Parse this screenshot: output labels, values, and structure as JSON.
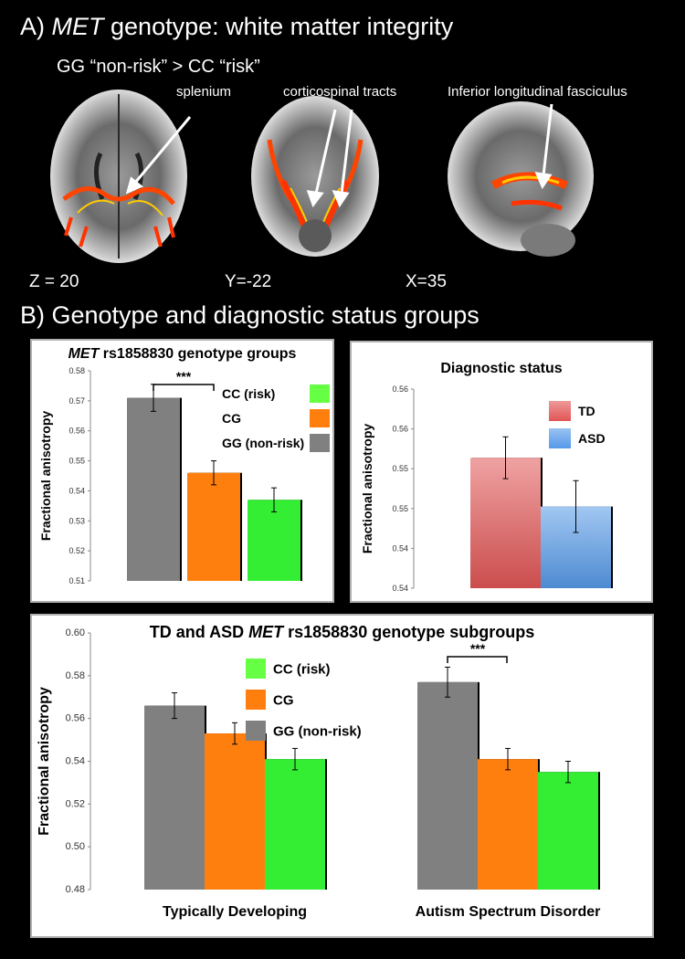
{
  "part_a": {
    "label": "A)",
    "title_italic": "MET",
    "title_rest": " genotype: white matter integrity",
    "subtitle": "GG “non-risk” > CC “risk”",
    "annotations": [
      "splenium",
      "corticospinal tracts",
      "Inferior longitudinal fasciculus"
    ],
    "coords": [
      "Z = 20",
      "Y=-22",
      "X=35"
    ]
  },
  "part_b": {
    "title": "B) Genotype and diagnostic status groups"
  },
  "chart_data": [
    {
      "type": "bar",
      "title_italic": "MET",
      "title_rest": " rs1858830 genotype groups",
      "ylabel": "Fractional anisotropy",
      "ylim": [
        0.51,
        0.58
      ],
      "yticks": [
        "0.51",
        "0.52",
        "0.53",
        "0.54",
        "0.55",
        "0.56",
        "0.57",
        "0.58"
      ],
      "categories": [
        "GG (non-risk)",
        "CG",
        "CC (risk)"
      ],
      "values": [
        0.571,
        0.546,
        0.537
      ],
      "errors": [
        0.0045,
        0.004,
        0.004
      ],
      "colors": [
        "#808080",
        "#ff7f0e",
        "#33ee33"
      ],
      "legend": [
        "CC (risk)",
        "CG",
        "GG (non-risk)"
      ],
      "legend_colors": [
        "#66ff44",
        "#ff7f0e",
        "#808080"
      ],
      "significance": "***"
    },
    {
      "type": "bar",
      "title": "Diagnostic status",
      "ylabel": "Fractional anisotropy",
      "ylim": [
        0.54,
        0.56
      ],
      "yticks": [
        "0.54",
        "0.54",
        "0.55",
        "0.55",
        "0.56",
        "0.56"
      ],
      "categories": [
        "TD",
        "ASD"
      ],
      "values": [
        0.5531,
        0.5482
      ],
      "errors": [
        0.0021,
        0.0026
      ],
      "colors": [
        "#e25555",
        "#5599e8"
      ],
      "legend": [
        "TD",
        "ASD"
      ]
    },
    {
      "type": "bar",
      "title_pre": "TD and ASD ",
      "title_italic": "MET",
      "title_rest": " rs1858830 genotype subgroups",
      "ylabel": "Fractional anisotropy",
      "ylim": [
        0.48,
        0.6
      ],
      "yticks": [
        "0.48",
        "0.50",
        "0.52",
        "0.54",
        "0.56",
        "0.58",
        "0.60"
      ],
      "categories": [
        "Typically Developing",
        "Autism Spectrum Disorder"
      ],
      "series": [
        {
          "name": "GG (non-risk)",
          "values": [
            0.566,
            0.577
          ],
          "errors": [
            0.006,
            0.007
          ]
        },
        {
          "name": "CG",
          "values": [
            0.553,
            0.541
          ],
          "errors": [
            0.005,
            0.005
          ]
        },
        {
          "name": "CC (risk)",
          "values": [
            0.541,
            0.535
          ],
          "errors": [
            0.005,
            0.005
          ]
        }
      ],
      "colors": [
        "#808080",
        "#ff7f0e",
        "#33ee33"
      ],
      "legend": [
        "CC (risk)",
        "CG",
        "GG (non-risk)"
      ],
      "legend_colors": [
        "#66ff44",
        "#ff7f0e",
        "#808080"
      ],
      "significance": "***"
    }
  ]
}
